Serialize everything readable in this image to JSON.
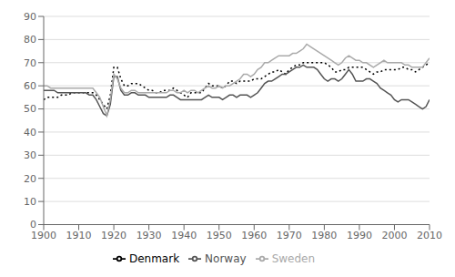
{
  "chart_data": {
    "type": "line",
    "x": [
      1900,
      1901,
      1902,
      1903,
      1904,
      1905,
      1906,
      1907,
      1908,
      1909,
      1910,
      1911,
      1912,
      1913,
      1914,
      1915,
      1916,
      1917,
      1918,
      1919,
      1920,
      1921,
      1922,
      1923,
      1924,
      1925,
      1926,
      1927,
      1928,
      1929,
      1930,
      1931,
      1932,
      1933,
      1934,
      1935,
      1936,
      1937,
      1938,
      1939,
      1940,
      1941,
      1942,
      1943,
      1944,
      1945,
      1946,
      1947,
      1948,
      1949,
      1950,
      1951,
      1952,
      1953,
      1954,
      1955,
      1956,
      1957,
      1958,
      1959,
      1960,
      1961,
      1962,
      1963,
      1964,
      1965,
      1966,
      1967,
      1968,
      1969,
      1970,
      1971,
      1972,
      1973,
      1974,
      1975,
      1976,
      1977,
      1978,
      1979,
      1980,
      1981,
      1982,
      1983,
      1984,
      1985,
      1986,
      1987,
      1988,
      1989,
      1990,
      1991,
      1992,
      1993,
      1994,
      1995,
      1996,
      1997,
      1998,
      1999,
      2000,
      2001,
      2002,
      2003,
      2004,
      2005,
      2006,
      2007,
      2008,
      2009,
      2010
    ],
    "series": [
      {
        "name": "Denmark",
        "color": "#000000",
        "line_style": "dotted",
        "values": [
          54,
          55,
          55,
          55,
          55,
          56,
          56,
          56,
          57,
          57,
          57,
          57,
          57,
          57,
          57,
          56,
          54,
          52,
          50,
          56,
          68,
          68,
          63,
          60,
          60,
          61,
          61,
          61,
          60,
          59,
          58,
          58,
          57,
          57,
          58,
          58,
          58,
          59,
          58,
          57,
          56,
          55,
          57,
          57,
          57,
          57,
          59,
          61,
          60,
          60,
          60,
          59,
          60,
          62,
          62,
          61,
          62,
          62,
          62,
          62,
          63,
          63,
          63,
          64,
          65,
          66,
          66,
          67,
          66,
          65,
          67,
          68,
          69,
          69,
          70,
          70,
          70,
          70,
          70,
          70,
          70,
          69,
          68,
          66,
          66,
          67,
          67,
          68,
          68,
          68,
          68,
          68,
          67,
          66,
          65,
          66,
          66,
          67,
          67,
          67,
          67,
          67,
          68,
          68,
          67,
          67,
          66,
          67,
          68,
          69,
          70
        ]
      },
      {
        "name": "Norway",
        "color": "#555555",
        "line_style": "solid",
        "values": [
          58,
          58,
          58,
          58,
          57,
          57,
          57,
          57,
          57,
          57,
          57,
          57,
          57,
          56,
          56,
          54,
          51,
          48,
          47,
          52,
          64,
          64,
          58,
          56,
          56,
          57,
          57,
          56,
          56,
          56,
          55,
          55,
          55,
          55,
          55,
          55,
          56,
          56,
          55,
          54,
          54,
          54,
          54,
          54,
          54,
          54,
          55,
          56,
          55,
          55,
          55,
          54,
          55,
          56,
          56,
          55,
          56,
          56,
          56,
          55,
          56,
          57,
          59,
          61,
          62,
          62,
          63,
          64,
          65,
          65,
          66,
          67,
          68,
          68,
          69,
          68,
          68,
          68,
          67,
          65,
          63,
          62,
          63,
          63,
          62,
          63,
          65,
          67,
          65,
          62,
          62,
          62,
          63,
          63,
          62,
          61,
          59,
          58,
          57,
          56,
          54,
          53,
          54,
          54,
          54,
          53,
          52,
          51,
          50,
          51,
          54
        ]
      },
      {
        "name": "Sweden",
        "color": "#aaaaaa",
        "line_style": "solid",
        "values": [
          60,
          60,
          59,
          59,
          59,
          59,
          59,
          59,
          59,
          59,
          59,
          59,
          59,
          59,
          59,
          57,
          55,
          51,
          47,
          54,
          65,
          63,
          59,
          57,
          57,
          58,
          58,
          57,
          57,
          57,
          57,
          57,
          57,
          57,
          57,
          57,
          58,
          58,
          57,
          57,
          58,
          57,
          58,
          58,
          57,
          58,
          59,
          60,
          59,
          59,
          60,
          59,
          60,
          60,
          61,
          62,
          63,
          65,
          65,
          64,
          65,
          67,
          68,
          70,
          70,
          71,
          72,
          73,
          73,
          73,
          73,
          74,
          74,
          75,
          76,
          78,
          77,
          76,
          75,
          74,
          73,
          72,
          71,
          70,
          69,
          70,
          72,
          73,
          72,
          71,
          71,
          70,
          70,
          69,
          68,
          69,
          70,
          71,
          70,
          70,
          70,
          70,
          70,
          69,
          69,
          68,
          68,
          68,
          68,
          70,
          72
        ]
      }
    ],
    "xlim": [
      1900,
      2010
    ],
    "ylim": [
      0,
      90
    ],
    "xticks": [
      1900,
      1910,
      1920,
      1930,
      1940,
      1950,
      1960,
      1970,
      1980,
      1990,
      2000,
      2010
    ],
    "yticks": [
      0,
      10,
      20,
      30,
      40,
      50,
      60,
      70,
      80,
      90
    ],
    "grid": true,
    "legend": "bottom"
  }
}
